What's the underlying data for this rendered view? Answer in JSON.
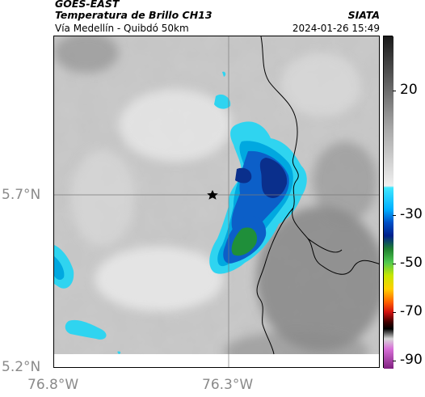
{
  "header": {
    "satellite": "GOES-EAST",
    "product": "Temperatura de Brillo CH13",
    "organization": "SIATA",
    "region": "Vía Medellín - Quibdó 50km",
    "timestamp": "2024-01-26 15:49"
  },
  "axes": {
    "lat_ticks": [
      "5.7°N",
      "5.2°N"
    ],
    "lon_ticks": [
      "76.8°W",
      "76.3°W"
    ]
  },
  "colorbar": {
    "ticks": [
      "20",
      "-30",
      "-50",
      "-70",
      "-90"
    ],
    "colors": {
      "warm_dark": "#222222",
      "warm_light": "#f2f2f2",
      "cyan": "#00c8ff",
      "blue": "#0050c8",
      "navy": "#00208c",
      "green": "#1fa01f",
      "yellow": "#e6e600",
      "red": "#d01010",
      "black": "#000000",
      "magenta": "#b040b0"
    }
  },
  "map": {
    "marker_icon": "star-icon",
    "cloud_colors": {
      "cyan": "#2fd4f0",
      "deep_cyan": "#00a8e0",
      "blue": "#0c5fc8",
      "navy": "#0a2f8c",
      "green": "#1f8f3a"
    }
  }
}
